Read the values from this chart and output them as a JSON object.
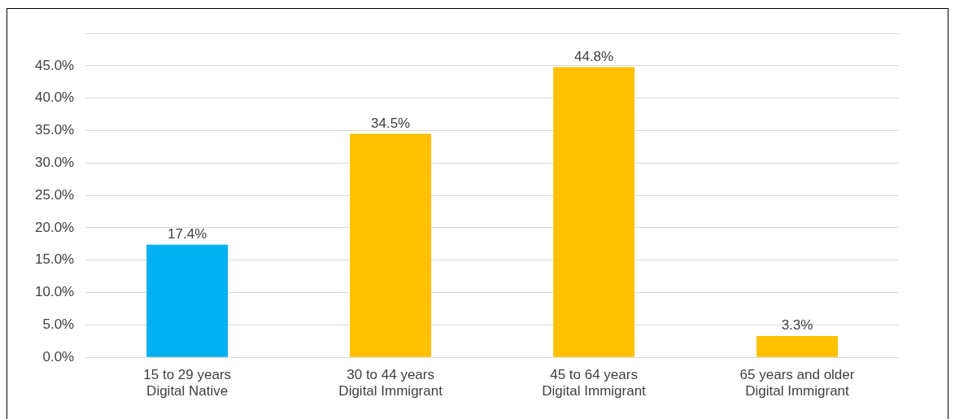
{
  "chart_data": {
    "type": "bar",
    "categories": [
      "15 to 29 years\nDigital Native",
      "30 to 44 years\nDigital Immigrant",
      "45 to 64 years\nDigital Immigrant",
      "65 years and older\nDigital Immigrant"
    ],
    "values": [
      17.4,
      34.5,
      44.8,
      3.3
    ],
    "colors": [
      "#00b0f0",
      "#ffc000",
      "#ffc000",
      "#ffc000"
    ],
    "value_labels": [
      "17.4%",
      "34.5%",
      "44.8%",
      "3.3%"
    ],
    "ylim": [
      0,
      50
    ],
    "yticks": [
      {
        "value": 0,
        "label": "0.0%"
      },
      {
        "value": 5,
        "label": "5.0%"
      },
      {
        "value": 10,
        "label": "10.0%"
      },
      {
        "value": 15,
        "label": "15.0%"
      },
      {
        "value": 20,
        "label": "20.0%"
      },
      {
        "value": 25,
        "label": "25.0%"
      },
      {
        "value": 30,
        "label": "30.0%"
      },
      {
        "value": 35,
        "label": "35.0%"
      },
      {
        "value": 40,
        "label": "40.0%"
      },
      {
        "value": 45,
        "label": "45.0%"
      },
      {
        "value": 50,
        "label": null
      }
    ],
    "grid": "y",
    "legend": false
  }
}
